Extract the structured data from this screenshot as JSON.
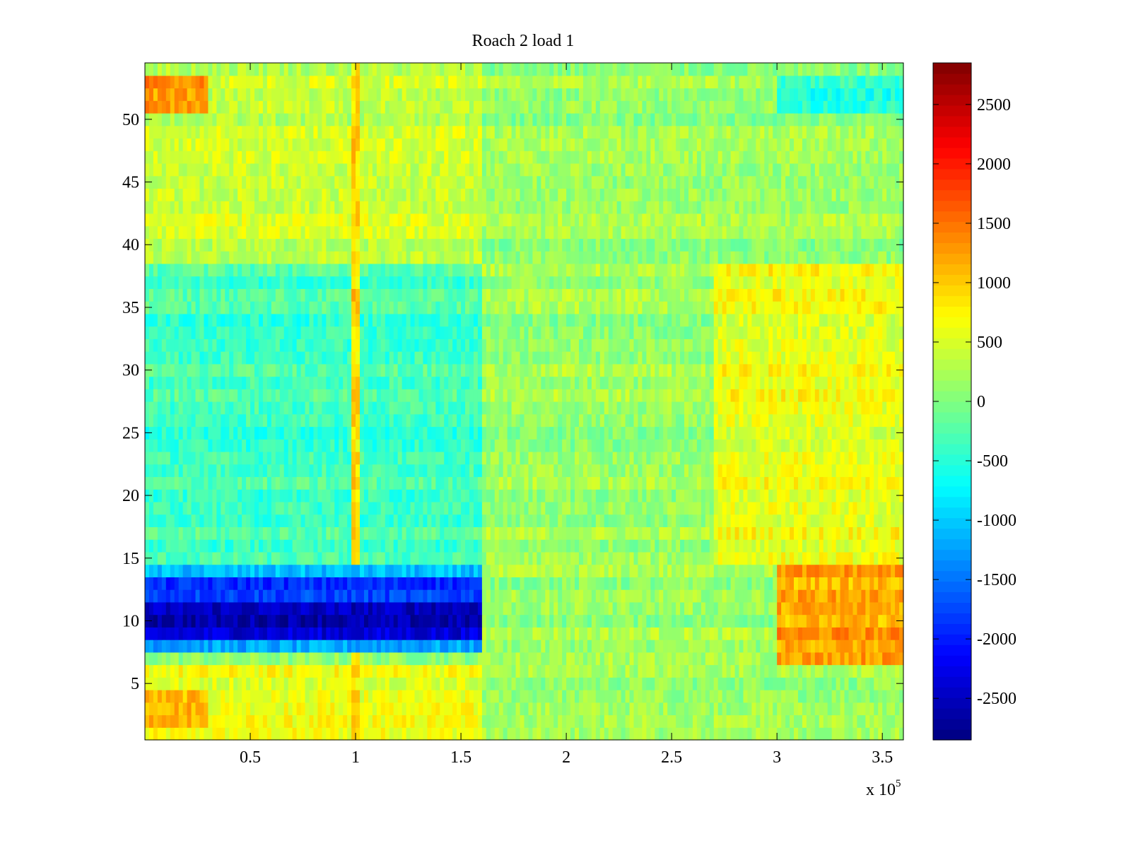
{
  "chart_data": {
    "type": "heatmap",
    "title": "Roach 2 load 1",
    "xlabel": "",
    "ylabel": "",
    "x_exponent_label": "x 10",
    "x_exponent_power": "5",
    "x_range": [
      0,
      360000
    ],
    "y_range": [
      0.5,
      54.5
    ],
    "rows": 54,
    "x_ticks": [
      {
        "value": 50000,
        "label": "0.5"
      },
      {
        "value": 100000,
        "label": "1"
      },
      {
        "value": 150000,
        "label": "1.5"
      },
      {
        "value": 200000,
        "label": "2"
      },
      {
        "value": 250000,
        "label": "2.5"
      },
      {
        "value": 300000,
        "label": "3"
      },
      {
        "value": 350000,
        "label": "3.5"
      }
    ],
    "y_ticks": [
      {
        "value": 5,
        "label": "5"
      },
      {
        "value": 10,
        "label": "10"
      },
      {
        "value": 15,
        "label": "15"
      },
      {
        "value": 20,
        "label": "20"
      },
      {
        "value": 25,
        "label": "25"
      },
      {
        "value": 30,
        "label": "30"
      },
      {
        "value": 35,
        "label": "35"
      },
      {
        "value": 40,
        "label": "40"
      },
      {
        "value": 45,
        "label": "45"
      },
      {
        "value": 50,
        "label": "50"
      }
    ],
    "colorbar": {
      "colormap": "jet",
      "range": [
        -2850,
        2850
      ],
      "ticks": [
        {
          "value": 2500,
          "label": "2500"
        },
        {
          "value": 2000,
          "label": "2000"
        },
        {
          "value": 1500,
          "label": "1500"
        },
        {
          "value": 1000,
          "label": "1000"
        },
        {
          "value": 500,
          "label": "500"
        },
        {
          "value": 0,
          "label": "0"
        },
        {
          "value": -500,
          "label": "-500"
        },
        {
          "value": -1000,
          "label": "-1000"
        },
        {
          "value": -1500,
          "label": "-1500"
        },
        {
          "value": -2000,
          "label": "-2000"
        },
        {
          "value": -2500,
          "label": "-2500"
        }
      ]
    },
    "regions": [
      {
        "x": [
          0,
          360000
        ],
        "y": [
          0.5,
          54.5
        ],
        "approx_value": 0
      },
      {
        "x": [
          0,
          160000
        ],
        "y": [
          38.5,
          54.5
        ],
        "approx_value": 400
      },
      {
        "x": [
          0,
          160000
        ],
        "y": [
          14.5,
          38.5
        ],
        "approx_value": -350
      },
      {
        "x": [
          0,
          160000
        ],
        "y": [
          0.5,
          6.5
        ],
        "approx_value": 600
      },
      {
        "x": [
          0,
          30000
        ],
        "y": [
          50.5,
          53.5
        ],
        "approx_value": 1300
      },
      {
        "x": [
          0,
          30000
        ],
        "y": [
          1.5,
          4.5
        ],
        "approx_value": 1100
      },
      {
        "x": [
          98000,
          103000
        ],
        "y": [
          0.5,
          54.5
        ],
        "approx_value": 900
      },
      {
        "x": [
          0,
          160000
        ],
        "y": [
          7.5,
          14.5
        ],
        "approx_value": -1200
      },
      {
        "x": [
          0,
          162000
        ],
        "y": [
          8.5,
          11.5
        ],
        "approx_value": -2500
      },
      {
        "x": [
          0,
          162000
        ],
        "y": [
          11.5,
          13.5
        ],
        "approx_value": -1800
      },
      {
        "x": [
          160000,
          360000
        ],
        "y": [
          0.5,
          54.5
        ],
        "approx_value": 150
      },
      {
        "x": [
          270000,
          360000
        ],
        "y": [
          14.5,
          38.5
        ],
        "approx_value": 600
      },
      {
        "x": [
          300000,
          360000
        ],
        "y": [
          6.5,
          14.5
        ],
        "approx_value": 1200
      },
      {
        "x": [
          300000,
          360000
        ],
        "y": [
          50.5,
          53.5
        ],
        "approx_value": -500
      }
    ]
  }
}
